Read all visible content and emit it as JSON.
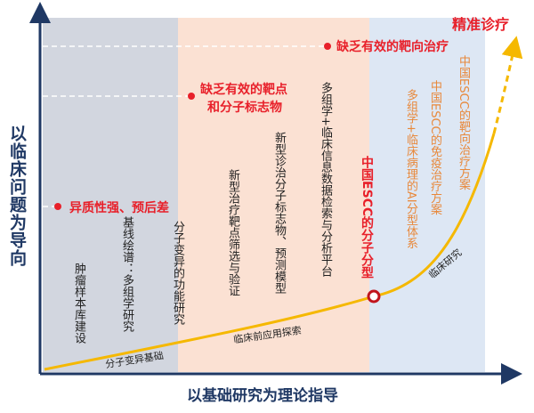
{
  "axes": {
    "y_label": "以临床问题为导向",
    "x_label": "以基础研究为理论指导"
  },
  "goal": "精准诊疗",
  "problems": [
    "缺乏有效的靶向治疗",
    [
      "缺乏有效的靶点",
      "和分子标志物"
    ],
    "异质性强、预后差"
  ],
  "phases": [
    "分子变异基础",
    "临床前应用探索",
    "临床研究"
  ],
  "items": [
    "肿瘤样本库建设",
    "基线绘谱：多组学研究",
    "分子变异的功能研究",
    "新型治疗靶点筛选与验证",
    "新型诊治分子标志物、预测模型",
    "多组学+临床信息数据检索与分析平台",
    "中国ESCC的分子分型",
    "多组学+临床病理的AI分型体系",
    "中国ESCC的免疫治疗方案",
    "中国ESCC的靶向治疗方案"
  ]
}
